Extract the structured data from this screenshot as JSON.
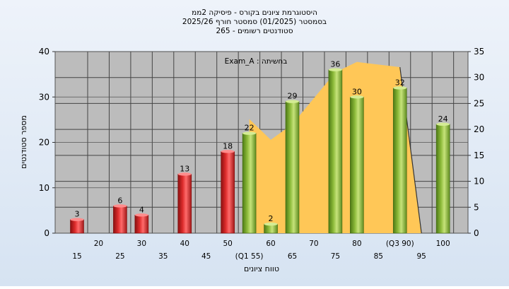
{
  "header": {
    "line1": "היסטוגרמת ציונים בקורס - פיסיקה 2ממ",
    "line2": "בסמסטר  (01/2025)  סמסטר חורף 2025/26",
    "line3": "265 - סטודנטים רשומים"
  },
  "chart_data": {
    "type": "bar",
    "title": "היסטוגרמת ציונים בקורס - פיסיקה 2ממ",
    "annotation": "Exam_A : בחשיתה",
    "xlabel": "טווח ציונים",
    "ylabel": "מספר סטודנטים",
    "ylim": [
      0,
      40
    ],
    "y_ticks": [
      0,
      10,
      20,
      30,
      40
    ],
    "y2lim": [
      0,
      35
    ],
    "y2_ticks": [
      0,
      5,
      10,
      15,
      20,
      25,
      30,
      35
    ],
    "grid": true,
    "x_tick_labels": [
      {
        "value": 15,
        "text": "15",
        "row": 1
      },
      {
        "value": 20,
        "text": "20",
        "row": 0
      },
      {
        "value": 25,
        "text": "25",
        "row": 1
      },
      {
        "value": 30,
        "text": "30",
        "row": 0
      },
      {
        "value": 35,
        "text": "35",
        "row": 1
      },
      {
        "value": 40,
        "text": "40",
        "row": 0
      },
      {
        "value": 45,
        "text": "45",
        "row": 1
      },
      {
        "value": 50,
        "text": "50",
        "row": 0
      },
      {
        "value": 55,
        "text": "(Q1 55)",
        "row": 1
      },
      {
        "value": 60,
        "text": "60",
        "row": 0
      },
      {
        "value": 65,
        "text": "65",
        "row": 1
      },
      {
        "value": 70,
        "text": "70",
        "row": 0
      },
      {
        "value": 75,
        "text": "75",
        "row": 1
      },
      {
        "value": 80,
        "text": "80",
        "row": 0
      },
      {
        "value": 85,
        "text": "85",
        "row": 1
      },
      {
        "value": 90,
        "text": "(Q3 90)",
        "row": 0
      },
      {
        "value": 95,
        "text": "95",
        "row": 1
      },
      {
        "value": 100,
        "text": "100",
        "row": 0
      }
    ],
    "bars": [
      {
        "x": 15,
        "value": 3,
        "color": "red"
      },
      {
        "x": 25,
        "value": 6,
        "color": "red"
      },
      {
        "x": 30,
        "value": 4,
        "color": "red"
      },
      {
        "x": 40,
        "value": 13,
        "color": "red"
      },
      {
        "x": 50,
        "value": 18,
        "color": "red"
      },
      {
        "x": 55,
        "value": 22,
        "color": "green"
      },
      {
        "x": 60,
        "value": 2,
        "color": "green"
      },
      {
        "x": 65,
        "value": 29,
        "color": "green"
      },
      {
        "x": 75,
        "value": 36,
        "color": "green"
      },
      {
        "x": 80,
        "value": 30,
        "color": "green"
      },
      {
        "x": 90,
        "value": 32,
        "color": "green"
      },
      {
        "x": 100,
        "value": 24,
        "color": "green"
      }
    ],
    "area_series": {
      "points": [
        [
          55,
          22
        ],
        [
          60,
          18
        ],
        [
          65,
          21
        ],
        [
          75,
          31
        ],
        [
          80,
          33
        ],
        [
          90,
          32
        ],
        [
          95,
          0
        ]
      ]
    },
    "colors": {
      "plot_bg": "#bcbcbc",
      "area": "#ffc757",
      "red_bar": "#dd2c2c",
      "green_bar": "#8dbb3a"
    }
  }
}
